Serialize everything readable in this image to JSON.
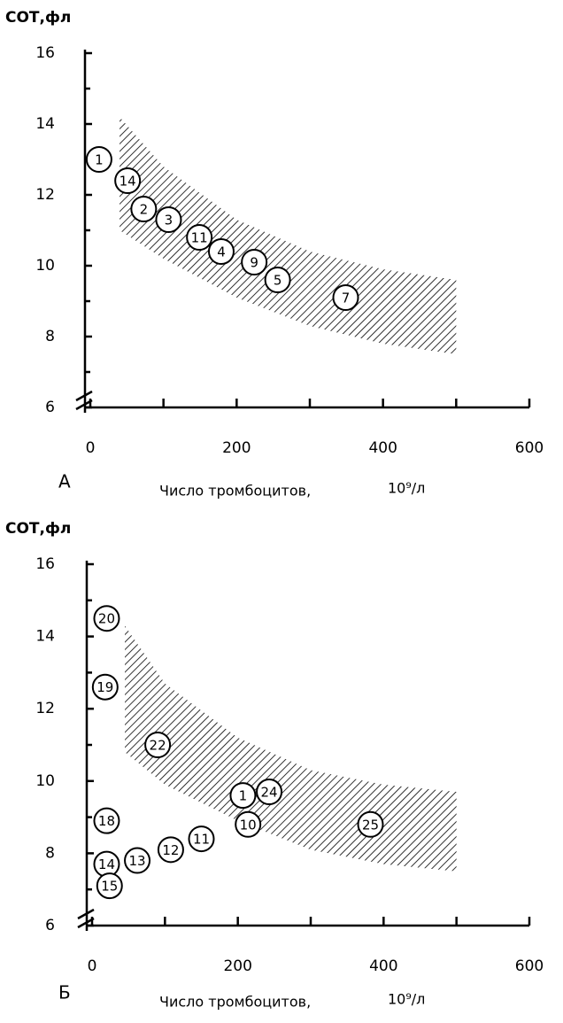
{
  "chart_data": [
    {
      "type": "scatter",
      "panel_label": "А",
      "y_label": "СОТ,фл",
      "x_label": "Число тромбоцитов,",
      "x_unit": "10⁹/л",
      "xlim": [
        0,
        600
      ],
      "ylim": [
        6,
        16
      ],
      "xticks": [
        0,
        200,
        400,
        600
      ],
      "yticks": [
        6,
        8,
        10,
        12,
        14,
        16
      ],
      "xminor": [
        100,
        300,
        500
      ],
      "yminor": [
        7,
        9,
        11,
        13,
        15
      ],
      "labels": [
        "1",
        "14",
        "2",
        "3",
        "11",
        "4",
        "9",
        "5",
        "7"
      ],
      "x": [
        12,
        51,
        73,
        107,
        149,
        179,
        224,
        256,
        349
      ],
      "values": [
        13.0,
        12.4,
        11.6,
        11.3,
        10.8,
        10.4,
        10.1,
        9.6,
        9.1
      ],
      "band": {
        "x": [
          40,
          100,
          200,
          300,
          400,
          500
        ],
        "upper": [
          14.2,
          12.8,
          11.3,
          10.4,
          9.9,
          9.6
        ],
        "lower": [
          11.0,
          10.2,
          9.1,
          8.3,
          7.8,
          7.5
        ]
      }
    },
    {
      "type": "scatter",
      "panel_label": "Б",
      "y_label": "СОТ,фл",
      "x_label": "Число тромбоцитов,",
      "x_unit": "10⁹/л",
      "xlim": [
        0,
        600
      ],
      "ylim": [
        6,
        16
      ],
      "xticks": [
        0,
        200,
        400,
        600
      ],
      "yticks": [
        6,
        8,
        10,
        12,
        14,
        16
      ],
      "xminor": [
        100,
        300,
        500
      ],
      "yminor": [
        7,
        9,
        11,
        13,
        15
      ],
      "labels": [
        "20",
        "19",
        "22",
        "1",
        "24",
        "10",
        "25",
        "18",
        "11",
        "12",
        "13",
        "14",
        "15"
      ],
      "x": [
        20,
        18,
        90,
        207,
        243,
        214,
        382,
        20,
        150,
        108,
        62,
        20,
        24
      ],
      "values": [
        14.5,
        12.6,
        11.0,
        9.6,
        9.7,
        8.8,
        8.8,
        8.9,
        8.4,
        8.1,
        7.8,
        7.7,
        7.1
      ],
      "band": {
        "x": [
          45,
          100,
          200,
          300,
          400,
          500
        ],
        "upper": [
          14.3,
          12.7,
          11.2,
          10.3,
          9.9,
          9.7
        ],
        "lower": [
          10.8,
          9.9,
          8.9,
          8.1,
          7.7,
          7.5
        ]
      }
    }
  ]
}
